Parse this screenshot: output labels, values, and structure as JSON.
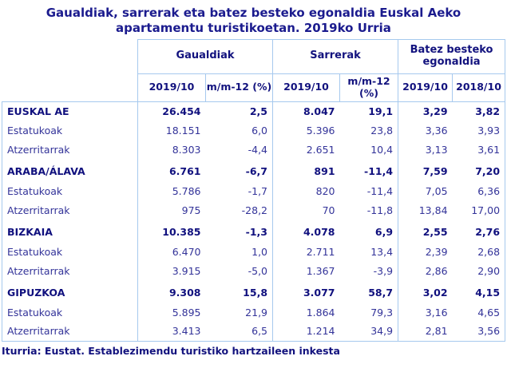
{
  "chart_data": {
    "type": "table",
    "title": "Gaualdiak, sarrerak eta batez besteko egonaldia Euskal Aeko apartamentu turistikoetan. 2019ko Urria",
    "column_groups": [
      {
        "label": "Gaualdiak",
        "subcolumns": [
          "2019/10",
          "m/m-12 (%)"
        ]
      },
      {
        "label": "Sarrerak",
        "subcolumns": [
          "2019/10",
          "m/m-12 (%)"
        ]
      },
      {
        "label": "Batez besteko egonaldia",
        "subcolumns": [
          "2019/10",
          "2018/10"
        ]
      }
    ],
    "rows": [
      {
        "label": "EUSKAL AE",
        "emphasis": true,
        "values": [
          "26.454",
          "2,5",
          "8.047",
          "19,1",
          "3,29",
          "3,82"
        ]
      },
      {
        "label": "Estatukoak",
        "emphasis": false,
        "values": [
          "18.151",
          "6,0",
          "5.396",
          "23,8",
          "3,36",
          "3,93"
        ]
      },
      {
        "label": "Atzerritarrak",
        "emphasis": false,
        "values": [
          "8.303",
          "-4,4",
          "2.651",
          "10,4",
          "3,13",
          "3,61"
        ]
      },
      {
        "label": "ARABA/ÁLAVA",
        "emphasis": true,
        "values": [
          "6.761",
          "-6,7",
          "891",
          "-11,4",
          "7,59",
          "7,20"
        ]
      },
      {
        "label": "Estatukoak",
        "emphasis": false,
        "values": [
          "5.786",
          "-1,7",
          "820",
          "-11,4",
          "7,05",
          "6,36"
        ]
      },
      {
        "label": "Atzerritarrak",
        "emphasis": false,
        "values": [
          "975",
          "-28,2",
          "70",
          "-11,8",
          "13,84",
          "17,00"
        ]
      },
      {
        "label": "BIZKAIA",
        "emphasis": true,
        "values": [
          "10.385",
          "-1,3",
          "4.078",
          "6,9",
          "2,55",
          "2,76"
        ]
      },
      {
        "label": "Estatukoak",
        "emphasis": false,
        "values": [
          "6.470",
          "1,0",
          "2.711",
          "13,4",
          "2,39",
          "2,68"
        ]
      },
      {
        "label": "Atzerritarrak",
        "emphasis": false,
        "values": [
          "3.915",
          "-5,0",
          "1.367",
          "-3,9",
          "2,86",
          "2,90"
        ]
      },
      {
        "label": "GIPUZKOA",
        "emphasis": true,
        "values": [
          "9.308",
          "15,8",
          "3.077",
          "58,7",
          "3,02",
          "4,15"
        ]
      },
      {
        "label": "Estatukoak",
        "emphasis": false,
        "values": [
          "5.895",
          "21,9",
          "1.864",
          "79,3",
          "3,16",
          "4,65"
        ]
      },
      {
        "label": "Atzerritarrak",
        "emphasis": false,
        "values": [
          "3.413",
          "6,5",
          "1.214",
          "34,9",
          "2,81",
          "3,56"
        ]
      }
    ],
    "source": "Iturria: Eustat. Establezimendu turistiko hartzaileen inkesta"
  },
  "colors": {
    "title_text": "#1b1b8e",
    "table_text": "#333399",
    "emphasis_text": "#10107e",
    "border": "#a6c9ee",
    "background": "#ffffff"
  }
}
